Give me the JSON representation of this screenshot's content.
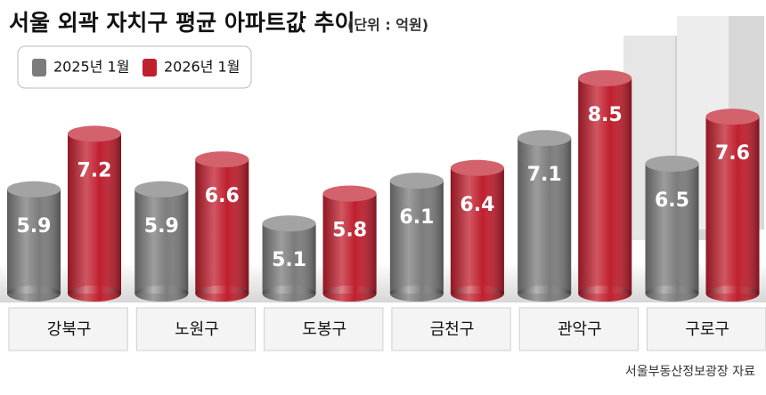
{
  "chart_data": {
    "type": "bar",
    "title": "서울 외곽 자치구 평균 아파트값 추이",
    "subtitle": "(단위 : 억원)",
    "categories": [
      "강북구",
      "노원구",
      "도봉구",
      "금천구",
      "관악구",
      "구로구"
    ],
    "series": [
      {
        "name": "2025년 1월",
        "color": "#7c7c7c",
        "values": [
          5.9,
          5.9,
          5.1,
          6.1,
          7.1,
          6.5
        ]
      },
      {
        "name": "2026년 1월",
        "color": "#c01f2e",
        "values": [
          7.2,
          6.6,
          5.8,
          6.4,
          8.5,
          7.6
        ]
      }
    ],
    "source": "서울부동산정보광장 자료"
  }
}
